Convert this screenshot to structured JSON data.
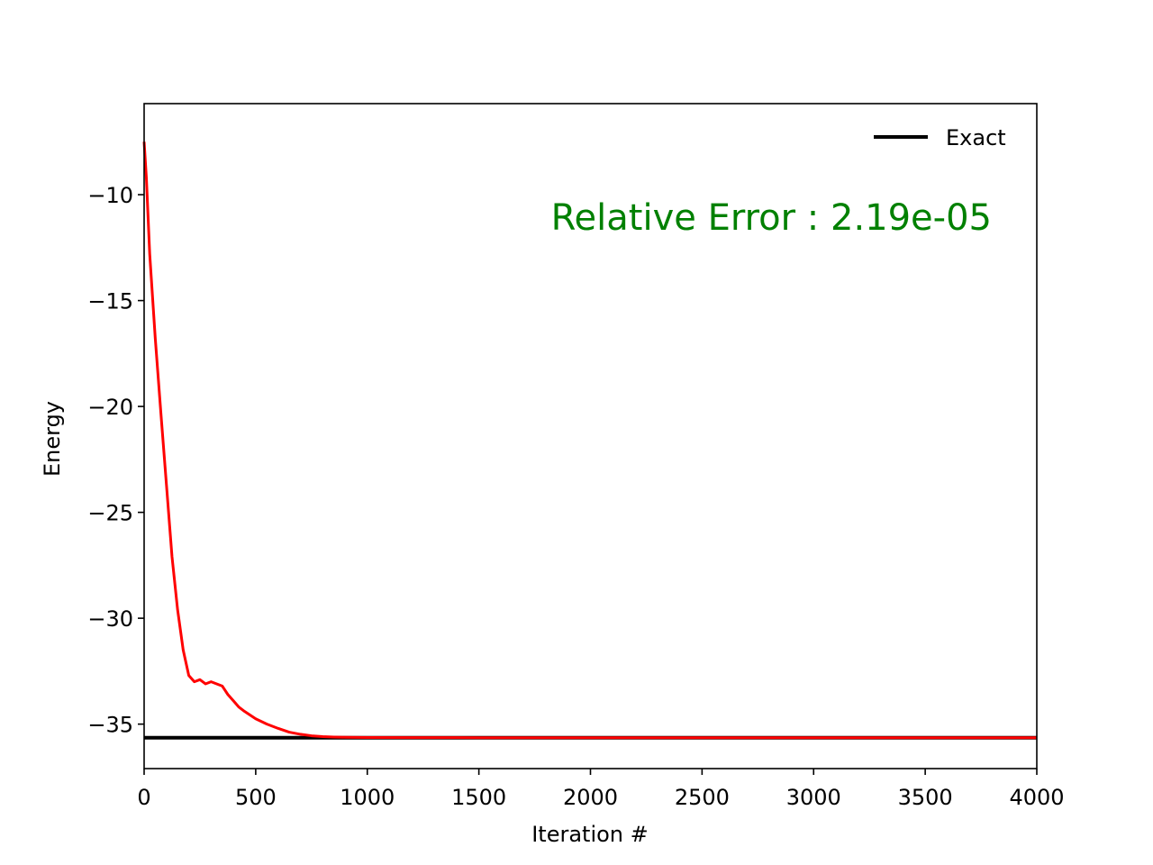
{
  "chart_data": {
    "type": "line",
    "xlabel": "Iteration #",
    "ylabel": "Energy",
    "xlim": [
      0,
      4000
    ],
    "ylim": [
      -37.1,
      -5.7
    ],
    "x_ticks": [
      0,
      500,
      1000,
      1500,
      2000,
      2500,
      3000,
      3500,
      4000
    ],
    "x_tick_labels": [
      "0",
      "500",
      "1000",
      "1500",
      "2000",
      "2500",
      "3000",
      "3500",
      "4000"
    ],
    "y_ticks": [
      -35,
      -30,
      -25,
      -20,
      -15,
      -10
    ],
    "y_tick_labels": [
      "−35",
      "−30",
      "−25",
      "−20",
      "−15",
      "−10"
    ],
    "grid": false,
    "legend": {
      "position": "top-right"
    },
    "annotation": {
      "text": "Relative Error : 2.19e-05",
      "color": "#008000"
    },
    "series": [
      {
        "name": "Exact",
        "color": "#000000",
        "x": [
          0,
          4000
        ],
        "y": [
          -35.64,
          -35.64
        ]
      },
      {
        "color": "#ff0000",
        "x": [
          0,
          10,
          25,
          50,
          75,
          100,
          125,
          150,
          175,
          200,
          225,
          250,
          275,
          300,
          325,
          350,
          375,
          400,
          425,
          450,
          500,
          550,
          600,
          650,
          700,
          750,
          800,
          850,
          900,
          1000,
          1200,
          1500,
          2000,
          2500,
          3000,
          3500,
          4000
        ],
        "y": [
          -7.5,
          -9.2,
          -12.8,
          -16.8,
          -20.3,
          -23.7,
          -27.1,
          -29.6,
          -31.5,
          -32.7,
          -33.0,
          -32.9,
          -33.1,
          -33.0,
          -33.1,
          -33.2,
          -33.6,
          -33.9,
          -34.2,
          -34.4,
          -34.75,
          -35.0,
          -35.2,
          -35.38,
          -35.48,
          -35.55,
          -35.59,
          -35.61,
          -35.62,
          -35.63,
          -35.635,
          -35.64,
          -35.64,
          -35.64,
          -35.64,
          -35.64,
          -35.64
        ]
      }
    ]
  }
}
